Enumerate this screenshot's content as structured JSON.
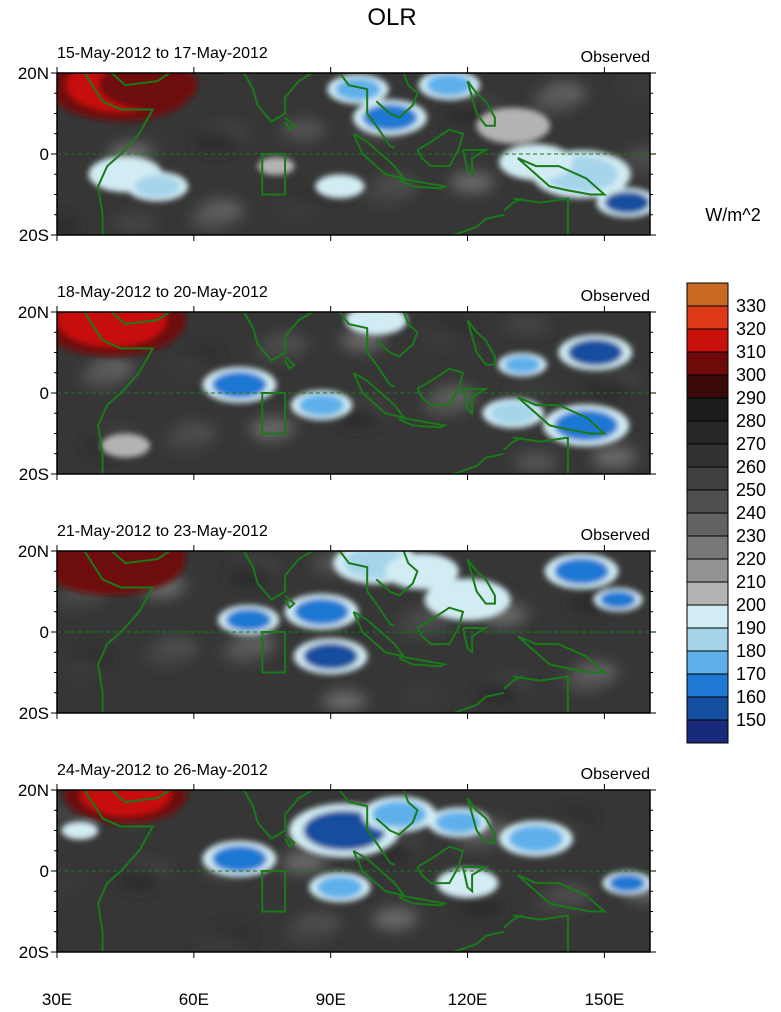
{
  "chart_data": {
    "type": "heatmap",
    "title": "OLR",
    "units_label": "W/m^2",
    "x_tick_labels": [
      "30E",
      "60E",
      "90E",
      "120E",
      "150E"
    ],
    "x_ticks_deg": [
      30,
      60,
      90,
      120,
      150
    ],
    "xlim_deg": [
      30,
      160
    ],
    "y_tick_labels": [
      "20N",
      "0",
      "20S"
    ],
    "ylim_deg": [
      -20,
      20
    ],
    "colorbar": {
      "levels": [
        330,
        320,
        310,
        300,
        290,
        280,
        270,
        260,
        250,
        240,
        230,
        220,
        210,
        200,
        190,
        180,
        170,
        160,
        150
      ],
      "colors": [
        "#c86a24",
        "#de3a1a",
        "#c80f0a",
        "#6e0a0a",
        "#3a0a0a",
        "#1c1c1c",
        "#262626",
        "#323232",
        "#404040",
        "#4f4f4f",
        "#626262",
        "#787878",
        "#939393",
        "#b3b3b3",
        "#d2ecf3",
        "#a6d4ea",
        "#5fb0ea",
        "#1f78d2",
        "#154e9e",
        "#1a2a7a"
      ]
    },
    "panels": [
      {
        "date_label": "15-May-2012 to 17-May-2012",
        "tag": "Observed",
        "features": [
          {
            "lon": 44,
            "lat": 17,
            "value": 315,
            "r": 12
          },
          {
            "lon": 50,
            "lat": 17,
            "value": 305,
            "r": 8
          },
          {
            "lon": 96,
            "lat": 16,
            "value": 170,
            "r": 5
          },
          {
            "lon": 103,
            "lat": 9,
            "value": 165,
            "r": 6
          },
          {
            "lon": 116,
            "lat": 17,
            "value": 170,
            "r": 5
          },
          {
            "lon": 45,
            "lat": -5,
            "value": 190,
            "r": 6
          },
          {
            "lon": 52,
            "lat": -8,
            "value": 180,
            "r": 5
          },
          {
            "lon": 92,
            "lat": -8,
            "value": 190,
            "r": 4
          },
          {
            "lon": 78,
            "lat": -3,
            "value": 200,
            "r": 3
          },
          {
            "lon": 145,
            "lat": -5,
            "value": 185,
            "r": 8
          },
          {
            "lon": 155,
            "lat": -12,
            "value": 155,
            "r": 5
          },
          {
            "lon": 135,
            "lat": -2,
            "value": 195,
            "r": 6
          },
          {
            "lon": 130,
            "lat": 7,
            "value": 200,
            "r": 6
          }
        ]
      },
      {
        "date_label": "18-May-2012 to 20-May-2012",
        "tag": "Observed",
        "features": [
          {
            "lon": 42,
            "lat": 18,
            "value": 310,
            "r": 12
          },
          {
            "lon": 70,
            "lat": 2,
            "value": 165,
            "r": 6
          },
          {
            "lon": 88,
            "lat": -3,
            "value": 175,
            "r": 5
          },
          {
            "lon": 100,
            "lat": 18,
            "value": 190,
            "r": 5
          },
          {
            "lon": 132,
            "lat": 7,
            "value": 170,
            "r": 4
          },
          {
            "lon": 148,
            "lat": 10,
            "value": 155,
            "r": 6
          },
          {
            "lon": 146,
            "lat": -8,
            "value": 160,
            "r": 7
          },
          {
            "lon": 130,
            "lat": -5,
            "value": 185,
            "r": 5
          },
          {
            "lon": 45,
            "lat": -13,
            "value": 205,
            "r": 4
          }
        ]
      },
      {
        "date_label": "21-May-2012 to 23-May-2012",
        "tag": "Observed",
        "features": [
          {
            "lon": 42,
            "lat": 18,
            "value": 300,
            "r": 12
          },
          {
            "lon": 72,
            "lat": 3,
            "value": 165,
            "r": 5
          },
          {
            "lon": 88,
            "lat": 5,
            "value": 160,
            "r": 6
          },
          {
            "lon": 90,
            "lat": -6,
            "value": 155,
            "r": 6
          },
          {
            "lon": 100,
            "lat": 17,
            "value": 180,
            "r": 7
          },
          {
            "lon": 145,
            "lat": 15,
            "value": 160,
            "r": 6
          },
          {
            "lon": 153,
            "lat": 8,
            "value": 165,
            "r": 4
          },
          {
            "lon": 120,
            "lat": 8,
            "value": 190,
            "r": 7
          },
          {
            "lon": 110,
            "lat": 15,
            "value": 195,
            "r": 6
          }
        ]
      },
      {
        "date_label": "24-May-2012 to 26-May-2012",
        "tag": "Observed",
        "features": [
          {
            "lon": 45,
            "lat": 19,
            "value": 310,
            "r": 10
          },
          {
            "lon": 93,
            "lat": 10,
            "value": 150,
            "r": 9
          },
          {
            "lon": 70,
            "lat": 3,
            "value": 160,
            "r": 6
          },
          {
            "lon": 105,
            "lat": 14,
            "value": 170,
            "r": 6
          },
          {
            "lon": 118,
            "lat": 12,
            "value": 175,
            "r": 5
          },
          {
            "lon": 135,
            "lat": 8,
            "value": 175,
            "r": 6
          },
          {
            "lon": 92,
            "lat": -4,
            "value": 175,
            "r": 5
          },
          {
            "lon": 155,
            "lat": -3,
            "value": 165,
            "r": 4
          },
          {
            "lon": 120,
            "lat": -3,
            "value": 190,
            "r": 5
          },
          {
            "lon": 35,
            "lat": 10,
            "value": 190,
            "r": 3
          }
        ]
      }
    ]
  }
}
